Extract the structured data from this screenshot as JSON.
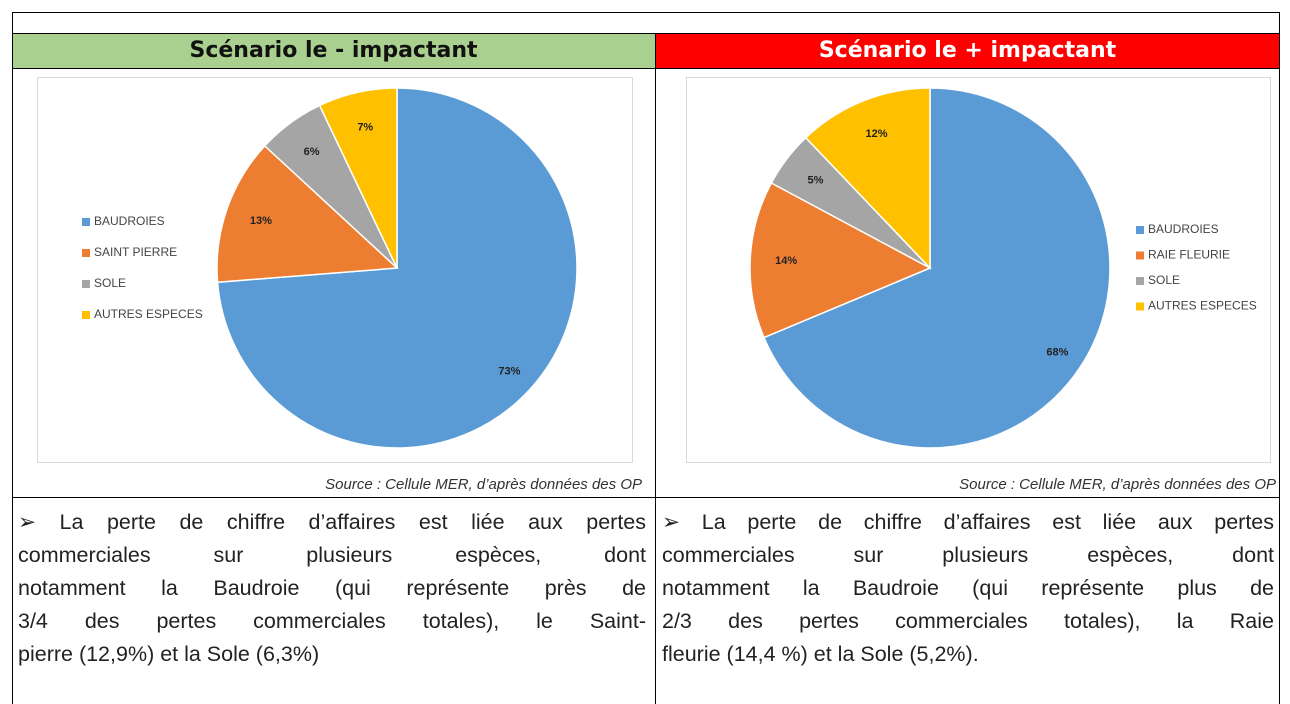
{
  "table": {
    "headers": [
      "Scénario le - impactant",
      "Scénario le + impactant"
    ],
    "sources": [
      "Source : Cellule MER, d’après données des OP",
      "Source : Cellule MER, d’après données des OP"
    ],
    "paragraphs": [
      [
        "➢ La perte de chiffre d’affaires est liée aux pertes",
        "commerciales sur plusieurs espèces, dont",
        "notamment la Baudroie (qui représente près de",
        "3/4 des pertes commerciales totales), le Saint-",
        "pierre (12,9%) et la Sole (6,3%)"
      ],
      [
        "➢ La perte de chiffre d’affaires est liée aux pertes",
        "commerciales sur plusieurs espèces, dont",
        "notamment la Baudroie (qui représente plus de",
        "2/3 des pertes commerciales totales), la Raie",
        "fleurie (14,4 %) et la Sole (5,2%)."
      ]
    ]
  },
  "chart_data": [
    {
      "type": "pie",
      "categories": [
        "BAUDROIES",
        "SAINT PIERRE",
        "SOLE",
        "AUTRES ESPECES"
      ],
      "values": [
        73,
        13,
        6,
        7
      ],
      "value_labels": [
        "73%",
        "13%",
        "6%",
        "7%"
      ],
      "colors": [
        "#5b9bd5",
        "#ed7d31",
        "#a5a5a5",
        "#ffc000"
      ],
      "legend": "left"
    },
    {
      "type": "pie",
      "categories": [
        "BAUDROIES",
        "RAIE FLEURIE",
        "SOLE",
        "AUTRES ESPECES"
      ],
      "values": [
        68,
        14,
        5,
        12
      ],
      "value_labels": [
        "68%",
        "14%",
        "5%",
        "12%"
      ],
      "colors": [
        "#5b9bd5",
        "#ed7d31",
        "#a5a5a5",
        "#ffc000"
      ],
      "legend": "right"
    }
  ]
}
